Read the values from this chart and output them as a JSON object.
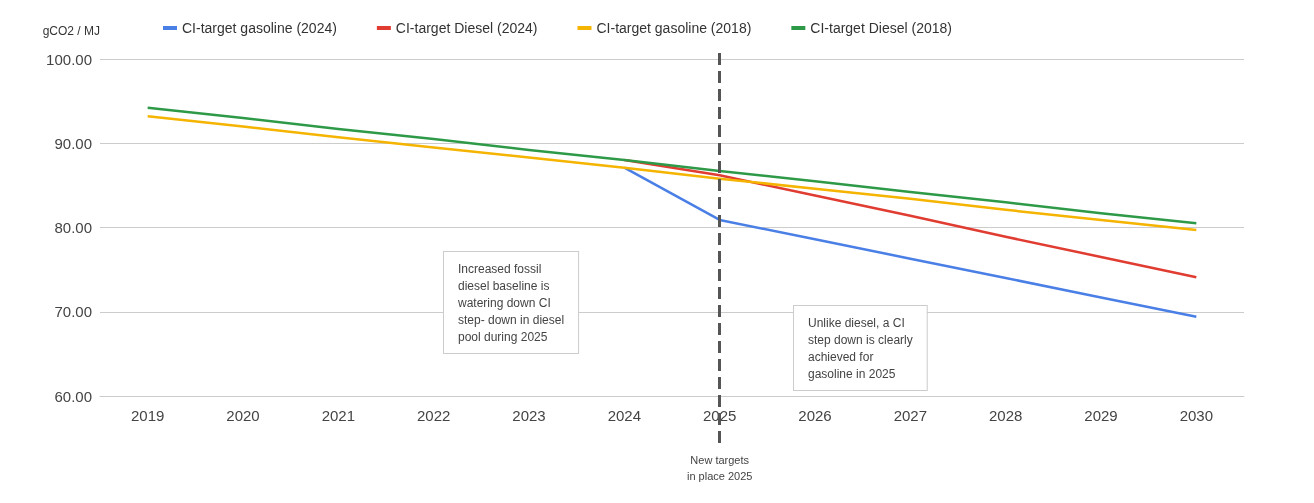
{
  "chart_data": {
    "type": "line",
    "ylabel": "gCO2 / MJ",
    "categories": [
      "2019",
      "2020",
      "2021",
      "2022",
      "2023",
      "2024",
      "2025",
      "2026",
      "2027",
      "2028",
      "2029",
      "2030"
    ],
    "series": [
      {
        "name": "CI-target gasoline (2024)",
        "color": "#4a7fe6",
        "values": [
          null,
          null,
          null,
          null,
          null,
          87.1,
          80.9,
          78.6,
          76.3,
          74.0,
          71.7,
          69.4
        ]
      },
      {
        "name": "CI-target Diesel (2024)",
        "color": "#e03c31",
        "values": [
          null,
          null,
          null,
          null,
          null,
          88.0,
          86.2,
          83.8,
          81.4,
          78.9,
          76.5,
          74.1
        ]
      },
      {
        "name": "CI-target gasoline (2018)",
        "color": "#f5b400",
        "values": [
          93.2,
          92.0,
          90.7,
          89.5,
          88.3,
          87.1,
          85.8,
          84.6,
          83.4,
          82.1,
          80.9,
          79.7
        ]
      },
      {
        "name": "CI-target Diesel (2018)",
        "color": "#2e9a48",
        "values": [
          94.2,
          93.0,
          91.7,
          90.5,
          89.2,
          88.0,
          86.7,
          85.5,
          84.2,
          83.0,
          81.7,
          80.5
        ]
      }
    ],
    "ylim": [
      60,
      100
    ],
    "yticks": [
      {
        "value": 60,
        "label": "60.00"
      },
      {
        "value": 70,
        "label": "70.00"
      },
      {
        "value": 80,
        "label": "80.00"
      },
      {
        "value": 90,
        "label": "90.00"
      },
      {
        "value": 100,
        "label": "100.00"
      }
    ],
    "grid": "y",
    "legend": "top",
    "marker": "none",
    "ref_lines": [
      {
        "axis": "x",
        "value": "2025",
        "label": "New targets\nin place 2025",
        "color": "#555555",
        "line_style": "dashed"
      }
    ],
    "annotations": [
      "Increased fossil\ndiesel baseline is\nwatering down CI\nstep- down in diesel\npool during 2025",
      "Unlike diesel, a CI\nstep down is clearly\nachieved for\ngasoline in 2025"
    ]
  }
}
